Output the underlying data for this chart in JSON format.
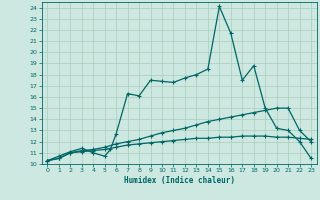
{
  "xlabel": "Humidex (Indice chaleur)",
  "bg_color": "#cce8e0",
  "line_color": "#006666",
  "grid_color": "#aaccbb",
  "xlim": [
    -0.5,
    23.5
  ],
  "ylim": [
    10,
    24.5
  ],
  "xticks": [
    0,
    1,
    2,
    3,
    4,
    5,
    6,
    7,
    8,
    9,
    10,
    11,
    12,
    13,
    14,
    15,
    16,
    17,
    18,
    19,
    20,
    21,
    22,
    23
  ],
  "yticks": [
    10,
    11,
    12,
    13,
    14,
    15,
    16,
    17,
    18,
    19,
    20,
    21,
    22,
    23,
    24
  ],
  "line1_x": [
    0,
    1,
    2,
    3,
    4,
    5,
    5.5,
    6,
    7,
    8,
    9,
    10,
    11,
    12,
    13,
    14,
    15,
    16,
    17,
    18,
    19,
    20,
    21,
    22,
    23
  ],
  "line1_y": [
    10.3,
    10.7,
    11.1,
    11.4,
    11.0,
    10.7,
    11.3,
    12.7,
    16.3,
    16.1,
    17.5,
    17.4,
    17.3,
    17.7,
    18.0,
    18.5,
    24.1,
    21.7,
    17.5,
    18.8,
    15.0,
    13.2,
    13.0,
    12.0,
    10.5
  ],
  "line2_x": [
    0,
    1,
    2,
    3,
    4,
    5,
    6,
    7,
    8,
    9,
    10,
    11,
    12,
    13,
    14,
    15,
    16,
    17,
    18,
    19,
    20,
    21,
    22,
    23
  ],
  "line2_y": [
    10.3,
    10.5,
    11.0,
    11.2,
    11.3,
    11.5,
    11.8,
    12.0,
    12.2,
    12.5,
    12.8,
    13.0,
    13.2,
    13.5,
    13.8,
    14.0,
    14.2,
    14.4,
    14.6,
    14.8,
    15.0,
    15.0,
    13.0,
    12.0
  ],
  "line3_x": [
    0,
    1,
    2,
    3,
    4,
    5,
    6,
    7,
    8,
    9,
    10,
    11,
    12,
    13,
    14,
    15,
    16,
    17,
    18,
    19,
    20,
    21,
    22,
    23
  ],
  "line3_y": [
    10.3,
    10.5,
    11.0,
    11.1,
    11.2,
    11.3,
    11.5,
    11.7,
    11.8,
    11.9,
    12.0,
    12.1,
    12.2,
    12.3,
    12.3,
    12.4,
    12.4,
    12.5,
    12.5,
    12.5,
    12.4,
    12.4,
    12.3,
    12.2
  ]
}
